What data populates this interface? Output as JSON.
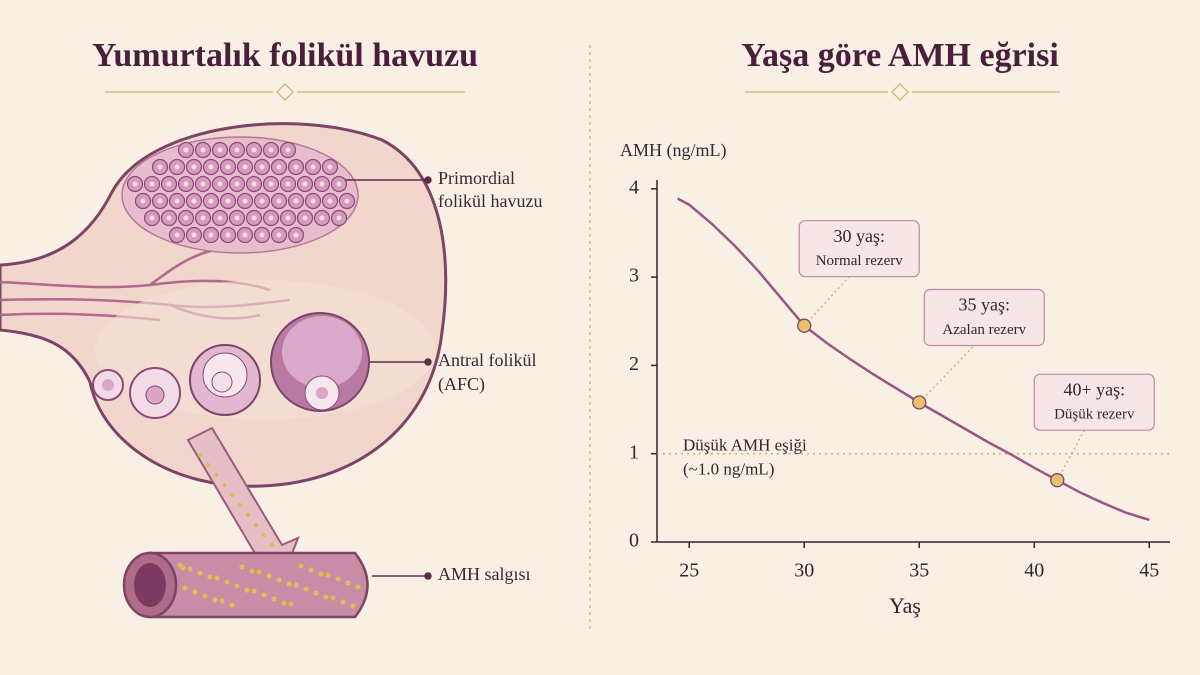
{
  "left": {
    "title": "Yumurtalık folikül havuzu",
    "labels": [
      [
        "Primordial",
        "folikül havuzu"
      ],
      [
        "Antral folikül",
        "(AFC)"
      ],
      [
        "AMH salgısı"
      ]
    ]
  },
  "chart_data": {
    "type": "line",
    "title": "Yaşa göre AMH eğrisi",
    "y_label": "AMH (ng/mL)",
    "x_label": "Yaş",
    "x": [
      24.5,
      25,
      26,
      27,
      28,
      29,
      30,
      31,
      32,
      33,
      34,
      35,
      36,
      37,
      38,
      39,
      40,
      41,
      42,
      43,
      44,
      45
    ],
    "series": [
      {
        "name": "AMH",
        "color": "#9c5485",
        "values": [
          3.89,
          3.82,
          3.6,
          3.35,
          3.07,
          2.76,
          2.45,
          2.25,
          2.07,
          1.9,
          1.74,
          1.58,
          1.43,
          1.28,
          1.13,
          0.99,
          0.84,
          0.7,
          0.56,
          0.44,
          0.33,
          0.25
        ]
      }
    ],
    "xlim": [
      23.6,
      45.9
    ],
    "ylim": [
      0,
      4.1
    ],
    "xticks": [
      25,
      30,
      35,
      40,
      45
    ],
    "yticks": [
      0,
      1,
      2,
      3,
      4
    ],
    "threshold": {
      "value": 1,
      "lines": [
        "Düşük AMH eşiği",
        "(~1.0 ng/mL)"
      ],
      "color": "#d4b060"
    },
    "annotations": [
      {
        "x": 30,
        "y": 2.45,
        "lines": [
          "30 yaş:",
          "Normal rezerv"
        ]
      },
      {
        "x": 35,
        "y": 1.58,
        "lines": [
          "35 yaş:",
          "Azalan rezerv"
        ]
      },
      {
        "x": 41,
        "y": 0.7,
        "lines": [
          "40+ yaş:",
          "Düşük rezerv"
        ]
      }
    ],
    "marker_color": "#e8c26a"
  }
}
